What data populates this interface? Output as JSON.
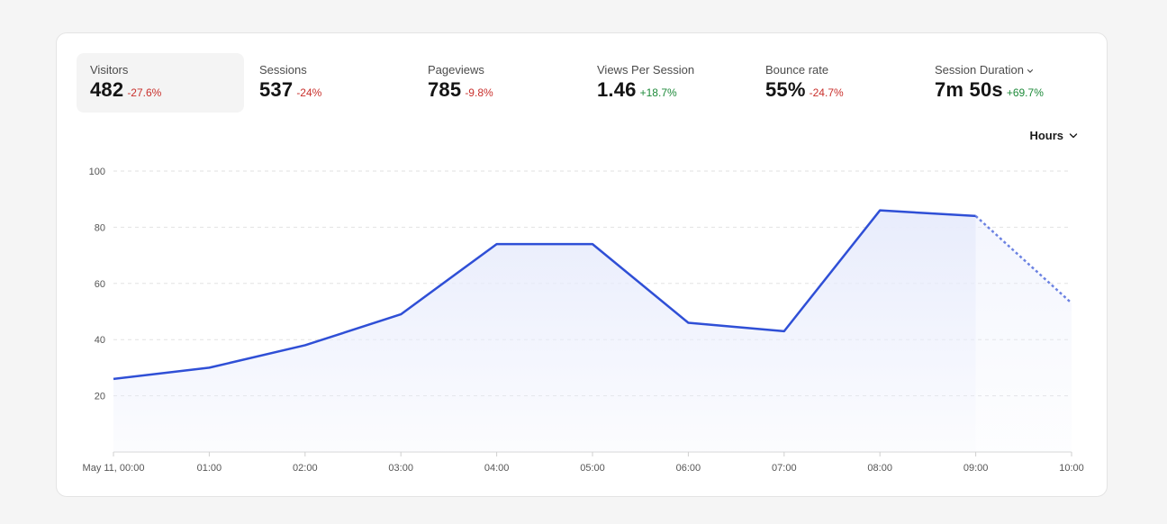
{
  "metrics": [
    {
      "label": "Visitors",
      "value": "482",
      "change": "-27.6%",
      "direction": "neg",
      "active": true
    },
    {
      "label": "Sessions",
      "value": "537",
      "change": "-24%",
      "direction": "neg"
    },
    {
      "label": "Pageviews",
      "value": "785",
      "change": "-9.8%",
      "direction": "neg"
    },
    {
      "label": "Views Per Session",
      "value": "1.46",
      "change": "+18.7%",
      "direction": "pos"
    },
    {
      "label": "Bounce rate",
      "value": "55%",
      "change": "-24.7%",
      "direction": "neg"
    },
    {
      "label": "Session Duration",
      "value": "7m 50s",
      "change": "+69.7%",
      "direction": "pos",
      "has_dropdown": true,
      "dropdown_icon": "chevron-down-icon"
    }
  ],
  "granularity": {
    "label": "Hours",
    "icon": "chevron-down-icon"
  },
  "colors": {
    "line": "#2f4fd6",
    "area": "#e8ecfc",
    "negative": "#c9302c",
    "positive": "#1e8a3a",
    "grid": "#e2e2e2"
  },
  "chart_data": {
    "type": "area",
    "x": [
      "May 11, 00:00",
      "01:00",
      "02:00",
      "03:00",
      "04:00",
      "05:00",
      "06:00",
      "07:00",
      "08:00",
      "09:00",
      "10:00"
    ],
    "series": [
      {
        "values": [
          26,
          30,
          38,
          49,
          74,
          74,
          46,
          43,
          86,
          84,
          53
        ]
      }
    ],
    "dashed_from_index": 9,
    "yticks": [
      20,
      40,
      60,
      80,
      100
    ],
    "ylim": [
      0,
      100
    ],
    "grid": true,
    "grid_style": "dashed"
  }
}
